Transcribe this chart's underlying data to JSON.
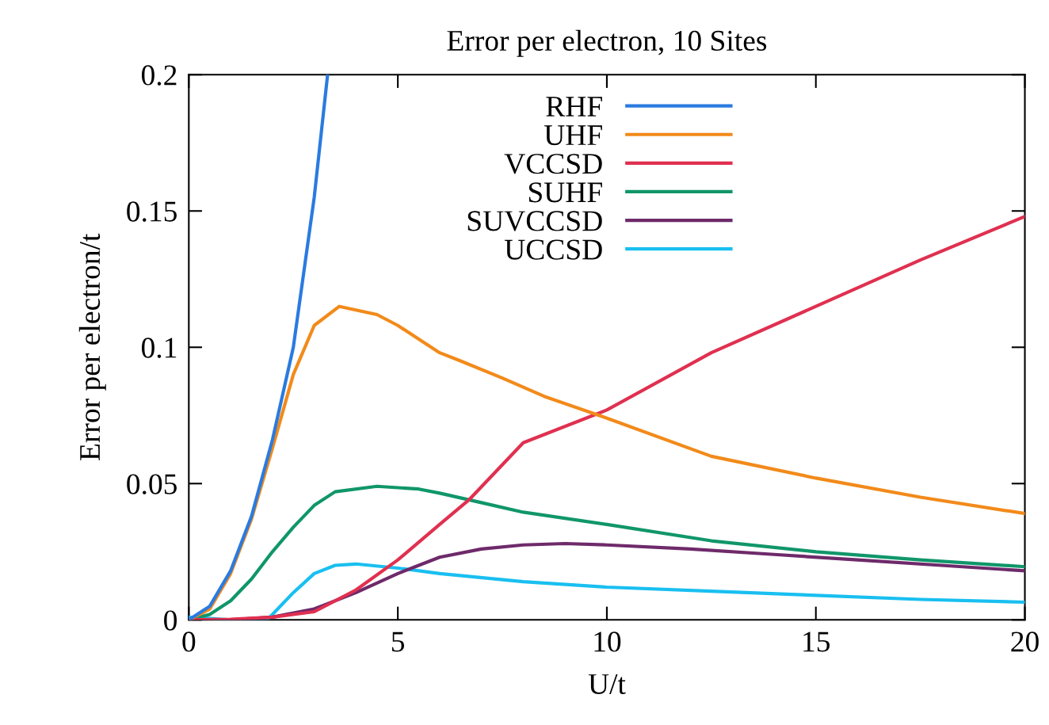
{
  "chart_data": {
    "type": "line",
    "title": "Error per electron, 10 Sites",
    "xlabel": "U/t",
    "ylabel": "Error per electron/t",
    "xlim": [
      0,
      20
    ],
    "ylim": [
      0,
      0.2
    ],
    "xticks": [
      0,
      5,
      10,
      15,
      20
    ],
    "yticks": [
      0,
      0.05,
      0.1,
      0.15,
      0.2
    ],
    "grid": false,
    "legend": "top",
    "marker": "none",
    "line_style": "solid",
    "series": [
      {
        "name": "RHF",
        "color": "#2a7be0",
        "x": [
          0,
          0.5,
          1,
          1.5,
          2,
          2.5,
          3,
          3.32
        ],
        "values": [
          0,
          0.005,
          0.018,
          0.038,
          0.066,
          0.1,
          0.155,
          0.2
        ]
      },
      {
        "name": "UHF",
        "color": "#f28a1a",
        "x": [
          0,
          0.5,
          1,
          1.5,
          2,
          2.5,
          3,
          3.6,
          4.5,
          5,
          6,
          6.5,
          7.5,
          8.5,
          10,
          12.5,
          15,
          17.5,
          20
        ],
        "values": [
          0,
          0.004,
          0.017,
          0.037,
          0.063,
          0.09,
          0.108,
          0.115,
          0.112,
          0.108,
          0.098,
          0.095,
          0.0887,
          0.082,
          0.074,
          0.06,
          0.052,
          0.045,
          0.039
        ]
      },
      {
        "name": "VCCSD",
        "color": "#e03050",
        "x": [
          0,
          1,
          2,
          3,
          4,
          5,
          6,
          6.7,
          8,
          10,
          12.5,
          15,
          17.5,
          20
        ],
        "values": [
          0,
          0.0002,
          0.001,
          0.003,
          0.011,
          0.022,
          0.035,
          0.044,
          0.065,
          0.077,
          0.098,
          0.115,
          0.132,
          0.148
        ]
      },
      {
        "name": "SUHF",
        "color": "#10966a",
        "x": [
          0,
          0.5,
          1,
          1.5,
          2,
          2.5,
          3,
          3.5,
          4.5,
          5.5,
          6,
          7,
          8,
          10,
          12.5,
          15,
          17.5,
          20
        ],
        "values": [
          0,
          0.002,
          0.007,
          0.015,
          0.025,
          0.034,
          0.042,
          0.047,
          0.049,
          0.048,
          0.0465,
          0.043,
          0.0395,
          0.035,
          0.029,
          0.025,
          0.022,
          0.0195
        ]
      },
      {
        "name": "SUVCCSD",
        "color": "#6e2a6a",
        "x": [
          0,
          1,
          2,
          3,
          4,
          5,
          6,
          7,
          8,
          9,
          10,
          12,
          14,
          16,
          18,
          20
        ],
        "values": [
          0,
          0,
          0.001,
          0.004,
          0.01,
          0.017,
          0.023,
          0.026,
          0.0275,
          0.028,
          0.0275,
          0.026,
          0.024,
          0.022,
          0.02,
          0.018
        ]
      },
      {
        "name": "UCCSD",
        "color": "#19bff0",
        "x": [
          0,
          1,
          1.9,
          2,
          2.5,
          3,
          3.5,
          4,
          5,
          6,
          8,
          10,
          12.5,
          15,
          17.5,
          20
        ],
        "values": [
          0.001,
          0,
          0.0005,
          0.002,
          0.01,
          0.017,
          0.02,
          0.0205,
          0.019,
          0.017,
          0.014,
          0.012,
          0.0105,
          0.009,
          0.0075,
          0.0065
        ]
      }
    ]
  }
}
